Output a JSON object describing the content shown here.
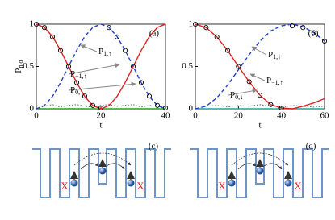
{
  "chart_data": [
    {
      "type": "line",
      "panel": "(a)",
      "ylabel": "P",
      "ylabel_sub": "n,σ",
      "xlabel": "t",
      "xlim": [
        0,
        40
      ],
      "ylim": [
        0,
        1
      ],
      "xticks": [
        0,
        20,
        40
      ],
      "yticks": [
        0,
        0.5,
        1
      ],
      "x": [
        0,
        2.5,
        5,
        7.5,
        10,
        12.5,
        15,
        17.5,
        20,
        22.5,
        25,
        27.5,
        30,
        32.5,
        35,
        37.5,
        40
      ],
      "series": [
        {
          "color": "#e02020",
          "style": "solid",
          "values": [
            1,
            0.962,
            0.854,
            0.691,
            0.5,
            0.309,
            0.146,
            0.038,
            0,
            0.038,
            0.146,
            0.309,
            0.5,
            0.691,
            0.854,
            0.962,
            1
          ]
        },
        {
          "color": "#2040d0",
          "style": "dashed",
          "values": [
            0,
            0.038,
            0.146,
            0.309,
            0.5,
            0.691,
            0.854,
            0.962,
            1,
            0.962,
            0.854,
            0.691,
            0.5,
            0.309,
            0.146,
            0.038,
            0
          ]
        },
        {
          "color": "#000000",
          "style": "markers",
          "values": [
            1,
            0.96,
            0.85,
            0.69,
            0.5,
            0.31,
            0.15,
            0.04,
            0.01,
            0.96,
            0.85,
            0.69,
            0.5,
            0.31,
            0.15,
            0.04,
            0.01
          ]
        },
        {
          "color": "#666666",
          "style": "dotted",
          "values": [
            0,
            0.03,
            0.05,
            0.02,
            0.04,
            0.05,
            0.03,
            0.02,
            0.04,
            0.05,
            0.03,
            0.04,
            0.05,
            0.02,
            0.04,
            0.03,
            0.02
          ]
        },
        {
          "color": "#20a020",
          "style": "solid",
          "values": [
            0,
            0,
            0,
            0,
            0,
            0,
            0,
            0,
            0,
            0,
            0,
            0,
            0,
            0,
            0,
            0,
            0
          ]
        }
      ],
      "annotations": [
        {
          "text": "P",
          "sub": "1,↑"
        },
        {
          "text": "P",
          "sub": "−1,↑"
        },
        {
          "text": "P",
          "sub": "0,↑"
        }
      ]
    },
    {
      "type": "line",
      "panel": "(b)",
      "xlabel": "t",
      "xlim": [
        0,
        60
      ],
      "ylim": [
        0,
        1
      ],
      "xticks": [
        0,
        20,
        40,
        60
      ],
      "yticks": [
        0,
        0.5,
        1
      ],
      "x": [
        0,
        5,
        10,
        15,
        20,
        25,
        30,
        35,
        40,
        45,
        50,
        55,
        60
      ],
      "series": [
        {
          "color": "#e02020",
          "style": "solid",
          "values": [
            1,
            0.96,
            0.85,
            0.69,
            0.5,
            0.32,
            0.16,
            0.05,
            0.01,
            0,
            0.03,
            0.07,
            0.12
          ]
        },
        {
          "color": "#2040d0",
          "style": "dashed",
          "values": [
            0,
            0.03,
            0.13,
            0.28,
            0.46,
            0.64,
            0.8,
            0.92,
            0.98,
            1,
            0.97,
            0.9,
            0.8
          ]
        },
        {
          "color": "#000000",
          "style": "markers",
          "values": [
            1,
            0.96,
            0.85,
            0.69,
            0.5,
            0.32,
            0.16,
            0.05,
            0.01,
            0.98,
            0.96,
            0.9,
            0.8
          ]
        },
        {
          "color": "#666666",
          "style": "dotted",
          "values": [
            0,
            0.03,
            0.04,
            0.02,
            0.04,
            0.03,
            0.05,
            0.03,
            0.02,
            0.04,
            0.03,
            0.02,
            0.03
          ]
        },
        {
          "color": "#20a0a0",
          "style": "solid",
          "values": [
            0,
            0,
            0,
            0,
            0,
            0,
            0,
            0,
            0,
            0,
            0,
            0,
            0
          ]
        }
      ],
      "annotations": [
        {
          "text": "P",
          "sub": "1,↑"
        },
        {
          "text": "P",
          "sub": "−1,↑"
        },
        {
          "text": "P",
          "sub": "0,↓"
        }
      ]
    }
  ],
  "diagrams": [
    {
      "label": "(c)",
      "marks": [
        "X",
        "X"
      ]
    },
    {
      "label": "(d)",
      "marks": [
        "X",
        "X"
      ]
    }
  ]
}
